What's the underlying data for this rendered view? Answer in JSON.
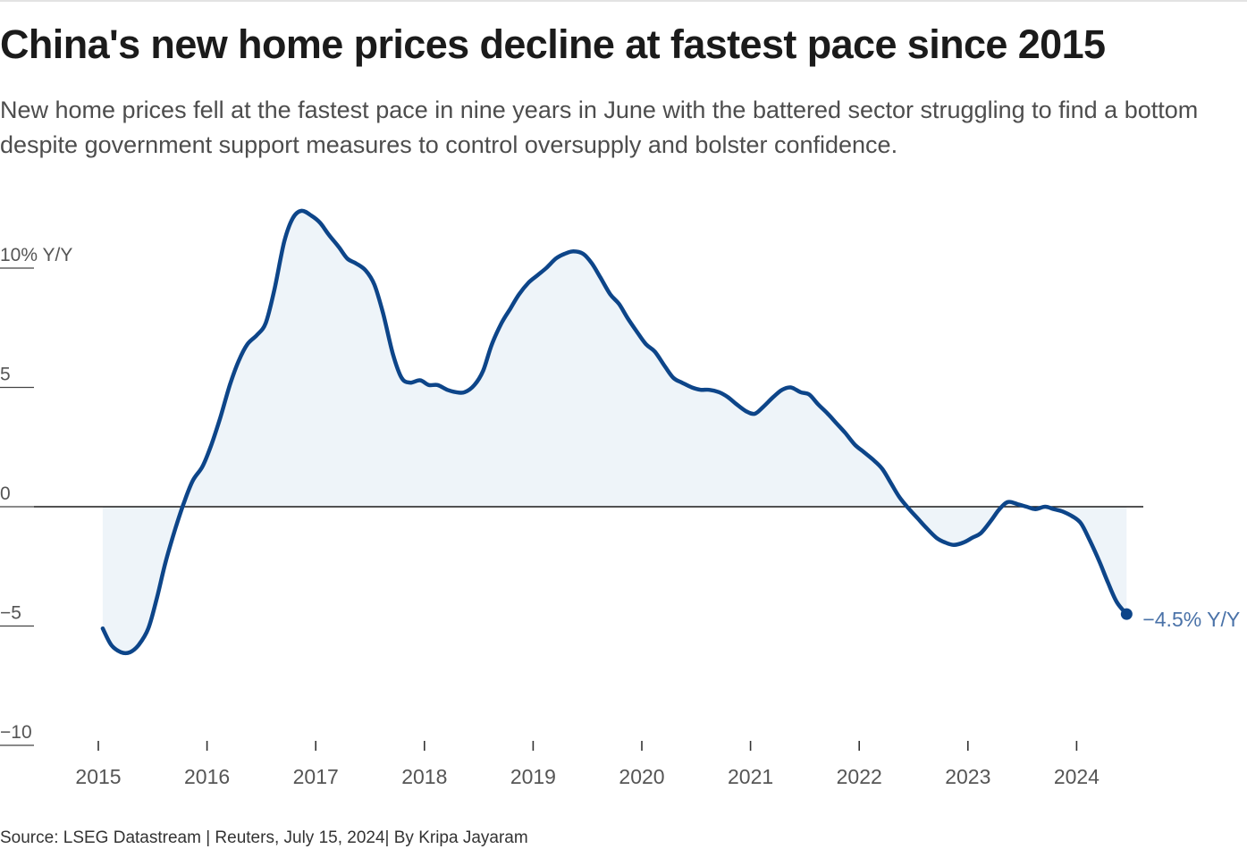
{
  "title": "China's new home prices decline at fastest pace since 2015",
  "subtitle": "New home prices fell at the fastest pace in nine years in June with the battered sector struggling to find a bottom despite government support measures to control oversupply and bolster confidence.",
  "source": "Source: LSEG Datastream | Reuters, July 15, 2024| By Kripa Jayaram",
  "colors": {
    "line": "#0d4589",
    "area": "#eef4f9",
    "zero_line": "#1a1a1a",
    "end_label": "#4a72a8",
    "axis_text": "#555555"
  },
  "chart_data": {
    "type": "area",
    "title": "China's new home prices decline at fastest pace since 2015",
    "xlabel": "",
    "ylabel": "",
    "y_tick_labels": [
      "10% Y/Y",
      "5",
      "0",
      "−5",
      "−10"
    ],
    "y_tick_values": [
      10,
      5,
      0,
      -5,
      -10
    ],
    "x_tick_labels": [
      "2015",
      "2016",
      "2017",
      "2018",
      "2019",
      "2020",
      "2021",
      "2022",
      "2023",
      "2024"
    ],
    "x_tick_values": [
      2015,
      2016,
      2017,
      2018,
      2019,
      2020,
      2021,
      2022,
      2023,
      2024
    ],
    "ylim": [
      -10,
      12.5
    ],
    "xlim": [
      2015,
      2024.6
    ],
    "grid": false,
    "baseline": 0,
    "end_label": "−4.5% Y/Y",
    "series": [
      {
        "name": "",
        "x": [
          2015.04,
          2015.12,
          2015.21,
          2015.29,
          2015.37,
          2015.46,
          2015.54,
          2015.62,
          2015.71,
          2015.79,
          2015.87,
          2015.96,
          2016.04,
          2016.12,
          2016.21,
          2016.29,
          2016.37,
          2016.46,
          2016.54,
          2016.62,
          2016.71,
          2016.79,
          2016.87,
          2016.96,
          2017.04,
          2017.12,
          2017.21,
          2017.29,
          2017.37,
          2017.46,
          2017.54,
          2017.62,
          2017.71,
          2017.79,
          2017.87,
          2017.96,
          2018.04,
          2018.12,
          2018.21,
          2018.29,
          2018.37,
          2018.46,
          2018.54,
          2018.62,
          2018.71,
          2018.79,
          2018.87,
          2018.96,
          2019.04,
          2019.12,
          2019.21,
          2019.29,
          2019.37,
          2019.46,
          2019.54,
          2019.62,
          2019.71,
          2019.79,
          2019.87,
          2019.96,
          2020.04,
          2020.12,
          2020.21,
          2020.29,
          2020.37,
          2020.46,
          2020.54,
          2020.62,
          2020.71,
          2020.79,
          2020.87,
          2020.96,
          2021.04,
          2021.12,
          2021.21,
          2021.29,
          2021.37,
          2021.46,
          2021.54,
          2021.62,
          2021.71,
          2021.79,
          2021.87,
          2021.96,
          2022.04,
          2022.12,
          2022.21,
          2022.29,
          2022.37,
          2022.46,
          2022.54,
          2022.62,
          2022.71,
          2022.79,
          2022.87,
          2022.96,
          2023.04,
          2023.12,
          2023.21,
          2023.29,
          2023.37,
          2023.46,
          2023.54,
          2023.62,
          2023.71,
          2023.79,
          2023.87,
          2023.96,
          2024.04,
          2024.12,
          2024.21,
          2024.29,
          2024.37,
          2024.46
        ],
        "values": [
          -5.1,
          -5.8,
          -6.1,
          -6.1,
          -5.8,
          -5.1,
          -3.8,
          -2.3,
          -0.9,
          0.2,
          1.1,
          1.7,
          2.6,
          3.7,
          5.1,
          6.1,
          6.8,
          7.2,
          7.7,
          9.1,
          11.1,
          12.1,
          12.4,
          12.2,
          11.9,
          11.4,
          10.9,
          10.4,
          10.2,
          9.9,
          9.3,
          8.1,
          6.4,
          5.4,
          5.2,
          5.3,
          5.1,
          5.1,
          4.9,
          4.8,
          4.8,
          5.1,
          5.7,
          6.8,
          7.7,
          8.3,
          8.9,
          9.4,
          9.7,
          10.0,
          10.4,
          10.6,
          10.7,
          10.6,
          10.2,
          9.6,
          8.9,
          8.5,
          7.9,
          7.3,
          6.8,
          6.5,
          5.9,
          5.4,
          5.2,
          5.0,
          4.9,
          4.9,
          4.8,
          4.6,
          4.3,
          4.0,
          3.9,
          4.2,
          4.6,
          4.9,
          5.0,
          4.8,
          4.7,
          4.3,
          3.9,
          3.5,
          3.1,
          2.6,
          2.3,
          2.0,
          1.6,
          1.0,
          0.4,
          -0.1,
          -0.5,
          -0.9,
          -1.3,
          -1.5,
          -1.6,
          -1.5,
          -1.3,
          -1.1,
          -0.6,
          -0.1,
          0.2,
          0.1,
          0.0,
          -0.1,
          0.0,
          -0.1,
          -0.2,
          -0.4,
          -0.7,
          -1.4,
          -2.3,
          -3.2,
          -4.0,
          -4.5
        ]
      }
    ]
  }
}
